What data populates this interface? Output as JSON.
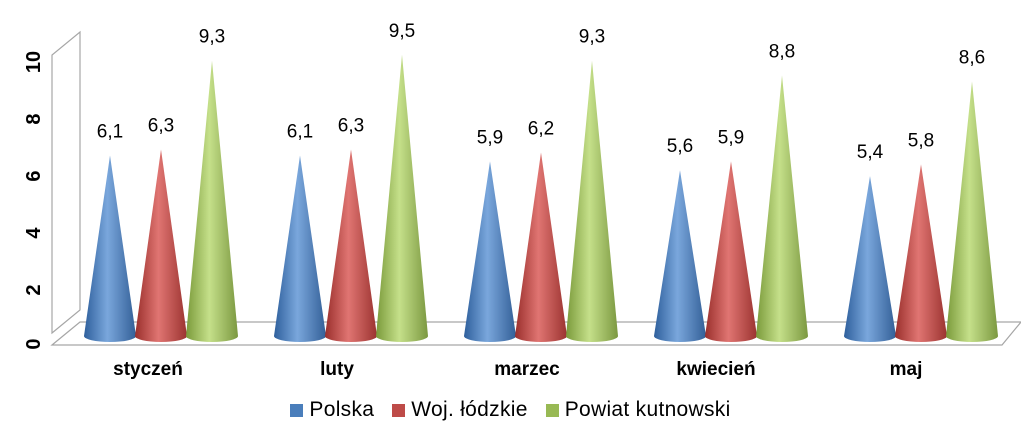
{
  "chart_data": {
    "type": "bar",
    "categories": [
      "styczeń",
      "luty",
      "marzec",
      "kwiecień",
      "maj"
    ],
    "series": [
      {
        "name": "Polska",
        "values": [
          6.1,
          6.1,
          5.9,
          5.6,
          5.4
        ],
        "color": "#4a7ebb",
        "labels": [
          "6,1",
          "6,1",
          "5,9",
          "5,6",
          "5,4"
        ]
      },
      {
        "name": "Woj. łódzkie",
        "values": [
          6.3,
          6.3,
          6.2,
          5.9,
          5.8
        ],
        "color": "#be4b48",
        "labels": [
          "6,3",
          "6,3",
          "6,2",
          "5,9",
          "5,8"
        ]
      },
      {
        "name": "Powiat kutnowski",
        "values": [
          9.3,
          9.5,
          9.3,
          8.8,
          8.6
        ],
        "color": "#98b954",
        "labels": [
          "9,3",
          "9,5",
          "9,3",
          "8,8",
          "8,6"
        ]
      }
    ],
    "yticks": [
      "0",
      "2",
      "4",
      "6",
      "8",
      "10"
    ],
    "ylim": [
      0,
      10
    ],
    "bar_shape": "cone",
    "legend_position": "bottom"
  }
}
